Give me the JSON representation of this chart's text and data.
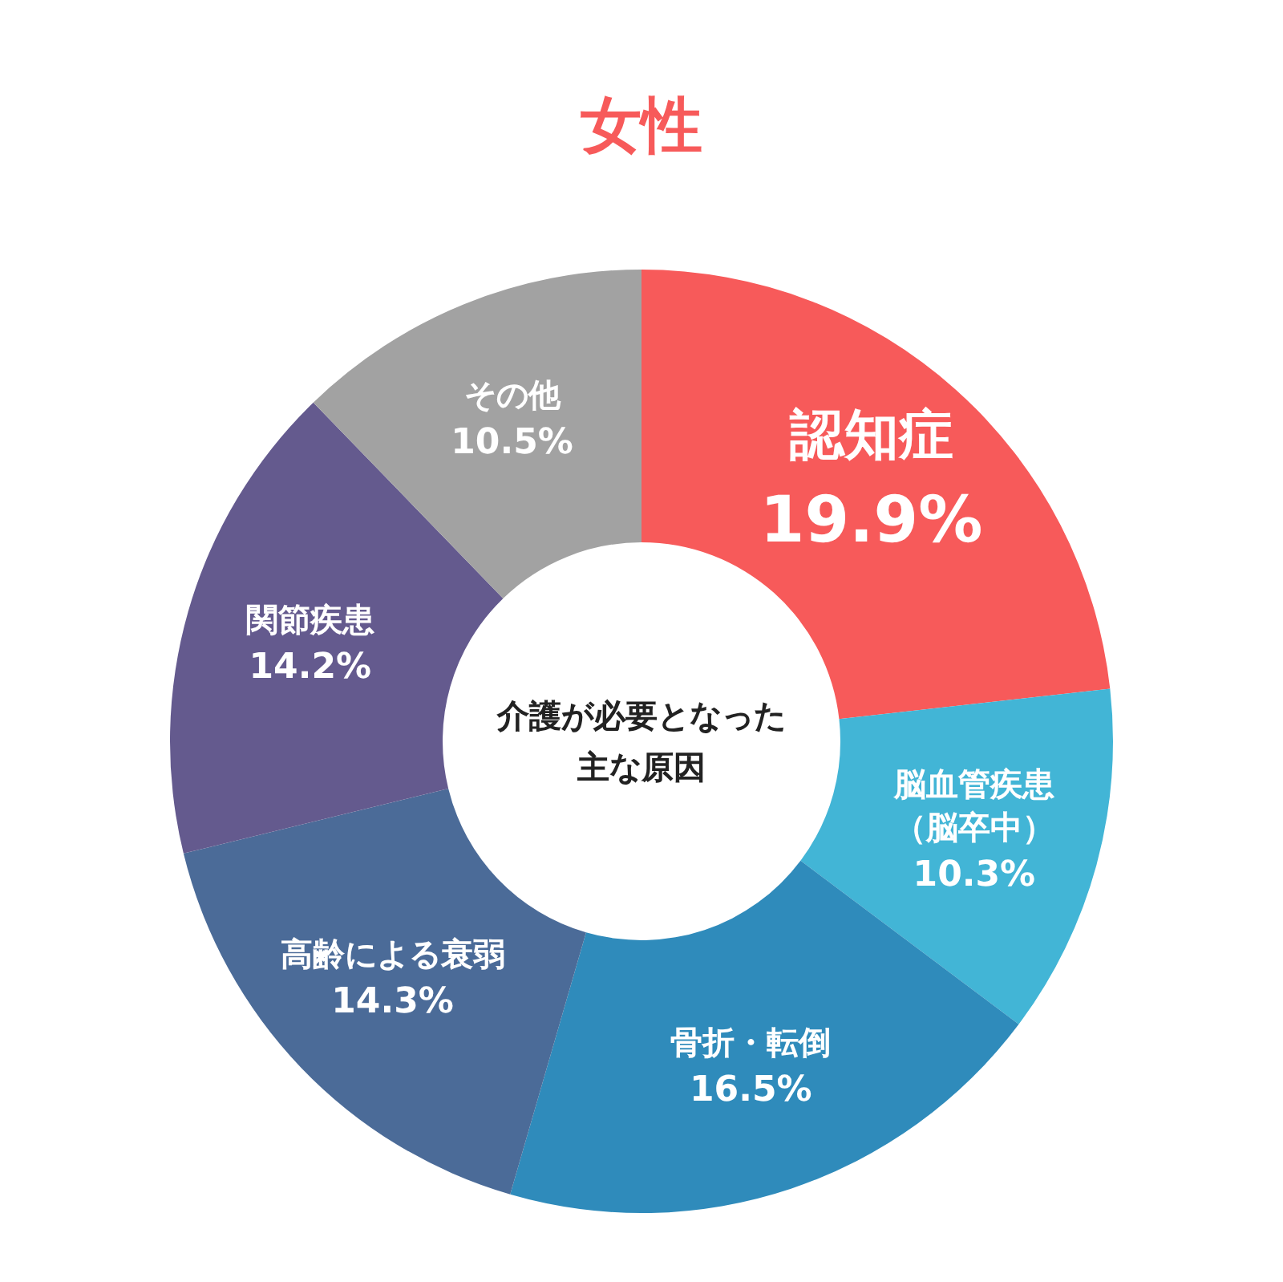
{
  "chart_data": {
    "type": "donut",
    "title": "女性",
    "categories": [
      "認知症",
      "脳血管疾患（脳卒中）",
      "骨折・転倒",
      "高齢による衰弱",
      "関節疾患",
      "その他"
    ],
    "values": [
      19.9,
      10.3,
      16.5,
      14.3,
      14.2,
      10.5
    ],
    "value_labels": [
      "19.9%",
      "10.3%",
      "16.5%",
      "14.3%",
      "14.2%",
      "10.5%"
    ],
    "colors": [
      "#f75a5a",
      "#42b5d6",
      "#2f8bbb",
      "#4b6b98",
      "#645a8e",
      "#a2a2a2"
    ],
    "annotations": [
      "介護が必要となった主な原因"
    ]
  }
}
